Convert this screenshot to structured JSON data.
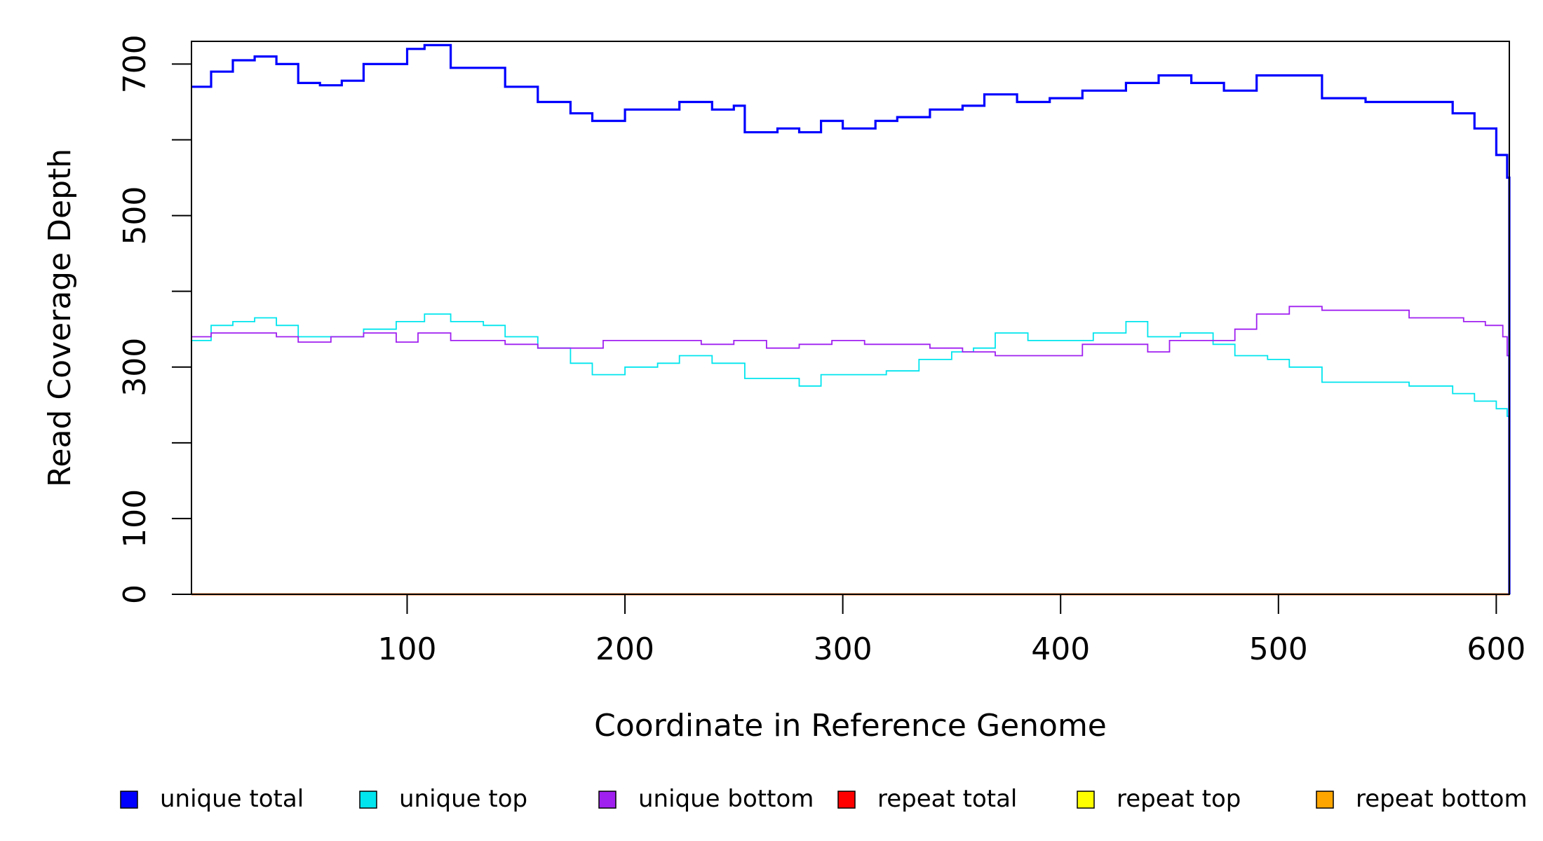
{
  "chart_data": {
    "type": "line",
    "xlabel": "Coordinate in Reference Genome",
    "ylabel": "Read Coverage Depth",
    "xlim": [
      1,
      606
    ],
    "ylim": [
      0,
      730
    ],
    "x_ticks": [
      100,
      200,
      300,
      400,
      500,
      600
    ],
    "x_tick_labels": [
      "100",
      "200",
      "300",
      "400",
      "500",
      "600"
    ],
    "y_ticks": [
      0,
      100,
      200,
      300,
      400,
      500,
      600,
      700
    ],
    "y_tick_labels": [
      "0",
      "100",
      "",
      "300",
      "",
      "500",
      "",
      "700"
    ],
    "grid": false,
    "legend_position": "bottom",
    "series": [
      {
        "name": "unique total",
        "color": "#0000ff",
        "x": [
          1,
          10,
          20,
          30,
          40,
          50,
          60,
          70,
          80,
          90,
          100,
          108,
          120,
          135,
          145,
          160,
          175,
          185,
          200,
          215,
          225,
          240,
          250,
          255,
          270,
          280,
          290,
          300,
          315,
          325,
          340,
          355,
          365,
          380,
          395,
          410,
          430,
          445,
          460,
          475,
          490,
          505,
          520,
          540,
          560,
          580,
          590,
          600,
          605,
          606
        ],
        "y": [
          670,
          690,
          705,
          710,
          700,
          675,
          672,
          678,
          700,
          700,
          720,
          725,
          695,
          695,
          670,
          650,
          635,
          625,
          640,
          640,
          650,
          640,
          645,
          610,
          615,
          610,
          625,
          615,
          625,
          630,
          640,
          645,
          660,
          650,
          655,
          665,
          675,
          685,
          675,
          665,
          685,
          685,
          655,
          650,
          650,
          635,
          615,
          580,
          550,
          0
        ]
      },
      {
        "name": "unique top",
        "color": "#00e5ee",
        "x": [
          1,
          10,
          20,
          30,
          40,
          50,
          65,
          80,
          95,
          108,
          120,
          135,
          145,
          160,
          175,
          185,
          200,
          215,
          225,
          240,
          255,
          270,
          280,
          290,
          305,
          320,
          335,
          350,
          360,
          370,
          385,
          400,
          415,
          430,
          440,
          455,
          470,
          480,
          495,
          505,
          520,
          540,
          560,
          580,
          590,
          600,
          605,
          606
        ],
        "y": [
          335,
          355,
          360,
          365,
          355,
          340,
          340,
          350,
          360,
          370,
          360,
          355,
          340,
          325,
          305,
          290,
          300,
          305,
          315,
          305,
          285,
          285,
          275,
          290,
          290,
          295,
          310,
          320,
          325,
          345,
          335,
          335,
          345,
          360,
          340,
          345,
          330,
          315,
          310,
          300,
          280,
          280,
          275,
          265,
          255,
          245,
          235,
          0
        ]
      },
      {
        "name": "unique bottom",
        "color": "#a020f0",
        "x": [
          1,
          10,
          20,
          30,
          40,
          50,
          65,
          80,
          95,
          105,
          120,
          135,
          145,
          160,
          175,
          190,
          205,
          220,
          235,
          250,
          265,
          280,
          295,
          310,
          325,
          340,
          355,
          370,
          385,
          400,
          410,
          425,
          440,
          450,
          465,
          480,
          490,
          505,
          520,
          540,
          550,
          560,
          575,
          585,
          595,
          603,
          605,
          606
        ],
        "y": [
          340,
          345,
          345,
          345,
          340,
          333,
          340,
          345,
          333,
          345,
          335,
          335,
          330,
          325,
          325,
          335,
          335,
          335,
          330,
          335,
          325,
          330,
          335,
          330,
          330,
          325,
          320,
          315,
          315,
          315,
          330,
          330,
          320,
          335,
          335,
          350,
          370,
          380,
          375,
          375,
          375,
          365,
          365,
          360,
          355,
          340,
          315,
          0
        ]
      },
      {
        "name": "repeat total",
        "color": "#ff0000",
        "x": [
          1,
          606
        ],
        "y": [
          0,
          0
        ]
      },
      {
        "name": "repeat top",
        "color": "#ffff00",
        "x": [
          1,
          606
        ],
        "y": [
          0,
          0
        ]
      },
      {
        "name": "repeat bottom",
        "color": "#ffa500",
        "x": [
          1,
          606
        ],
        "y": [
          0,
          0
        ]
      }
    ]
  }
}
